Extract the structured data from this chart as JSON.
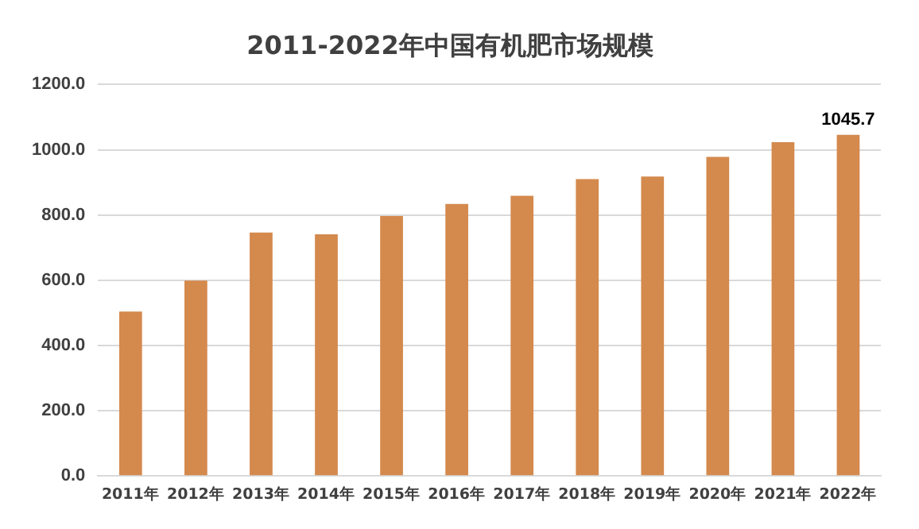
{
  "chart_data": {
    "type": "bar",
    "title": "2011-2022年中国有机肥市场规模",
    "categories": [
      "2011年",
      "2012年",
      "2013年",
      "2014年",
      "2015年",
      "2016年",
      "2017年",
      "2018年",
      "2019年",
      "2020年",
      "2021年",
      "2022年"
    ],
    "values": [
      504,
      599,
      746,
      741,
      797,
      834,
      859,
      910,
      918,
      978,
      1023,
      1045.7
    ],
    "value_labels": [
      null,
      null,
      null,
      null,
      null,
      null,
      null,
      null,
      null,
      null,
      null,
      "1045.7"
    ],
    "color": "#d4894d",
    "ylim": [
      0,
      1200
    ],
    "yticks": [
      {
        "value": 0,
        "label": "0.0"
      },
      {
        "value": 200,
        "label": "200.0"
      },
      {
        "value": 400,
        "label": "400.0"
      },
      {
        "value": 600,
        "label": "600.0"
      },
      {
        "value": 800,
        "label": "800.0"
      },
      {
        "value": 1000,
        "label": "1000.0"
      },
      {
        "value": 1200,
        "label": "1200.0"
      }
    ],
    "grid": "y"
  }
}
